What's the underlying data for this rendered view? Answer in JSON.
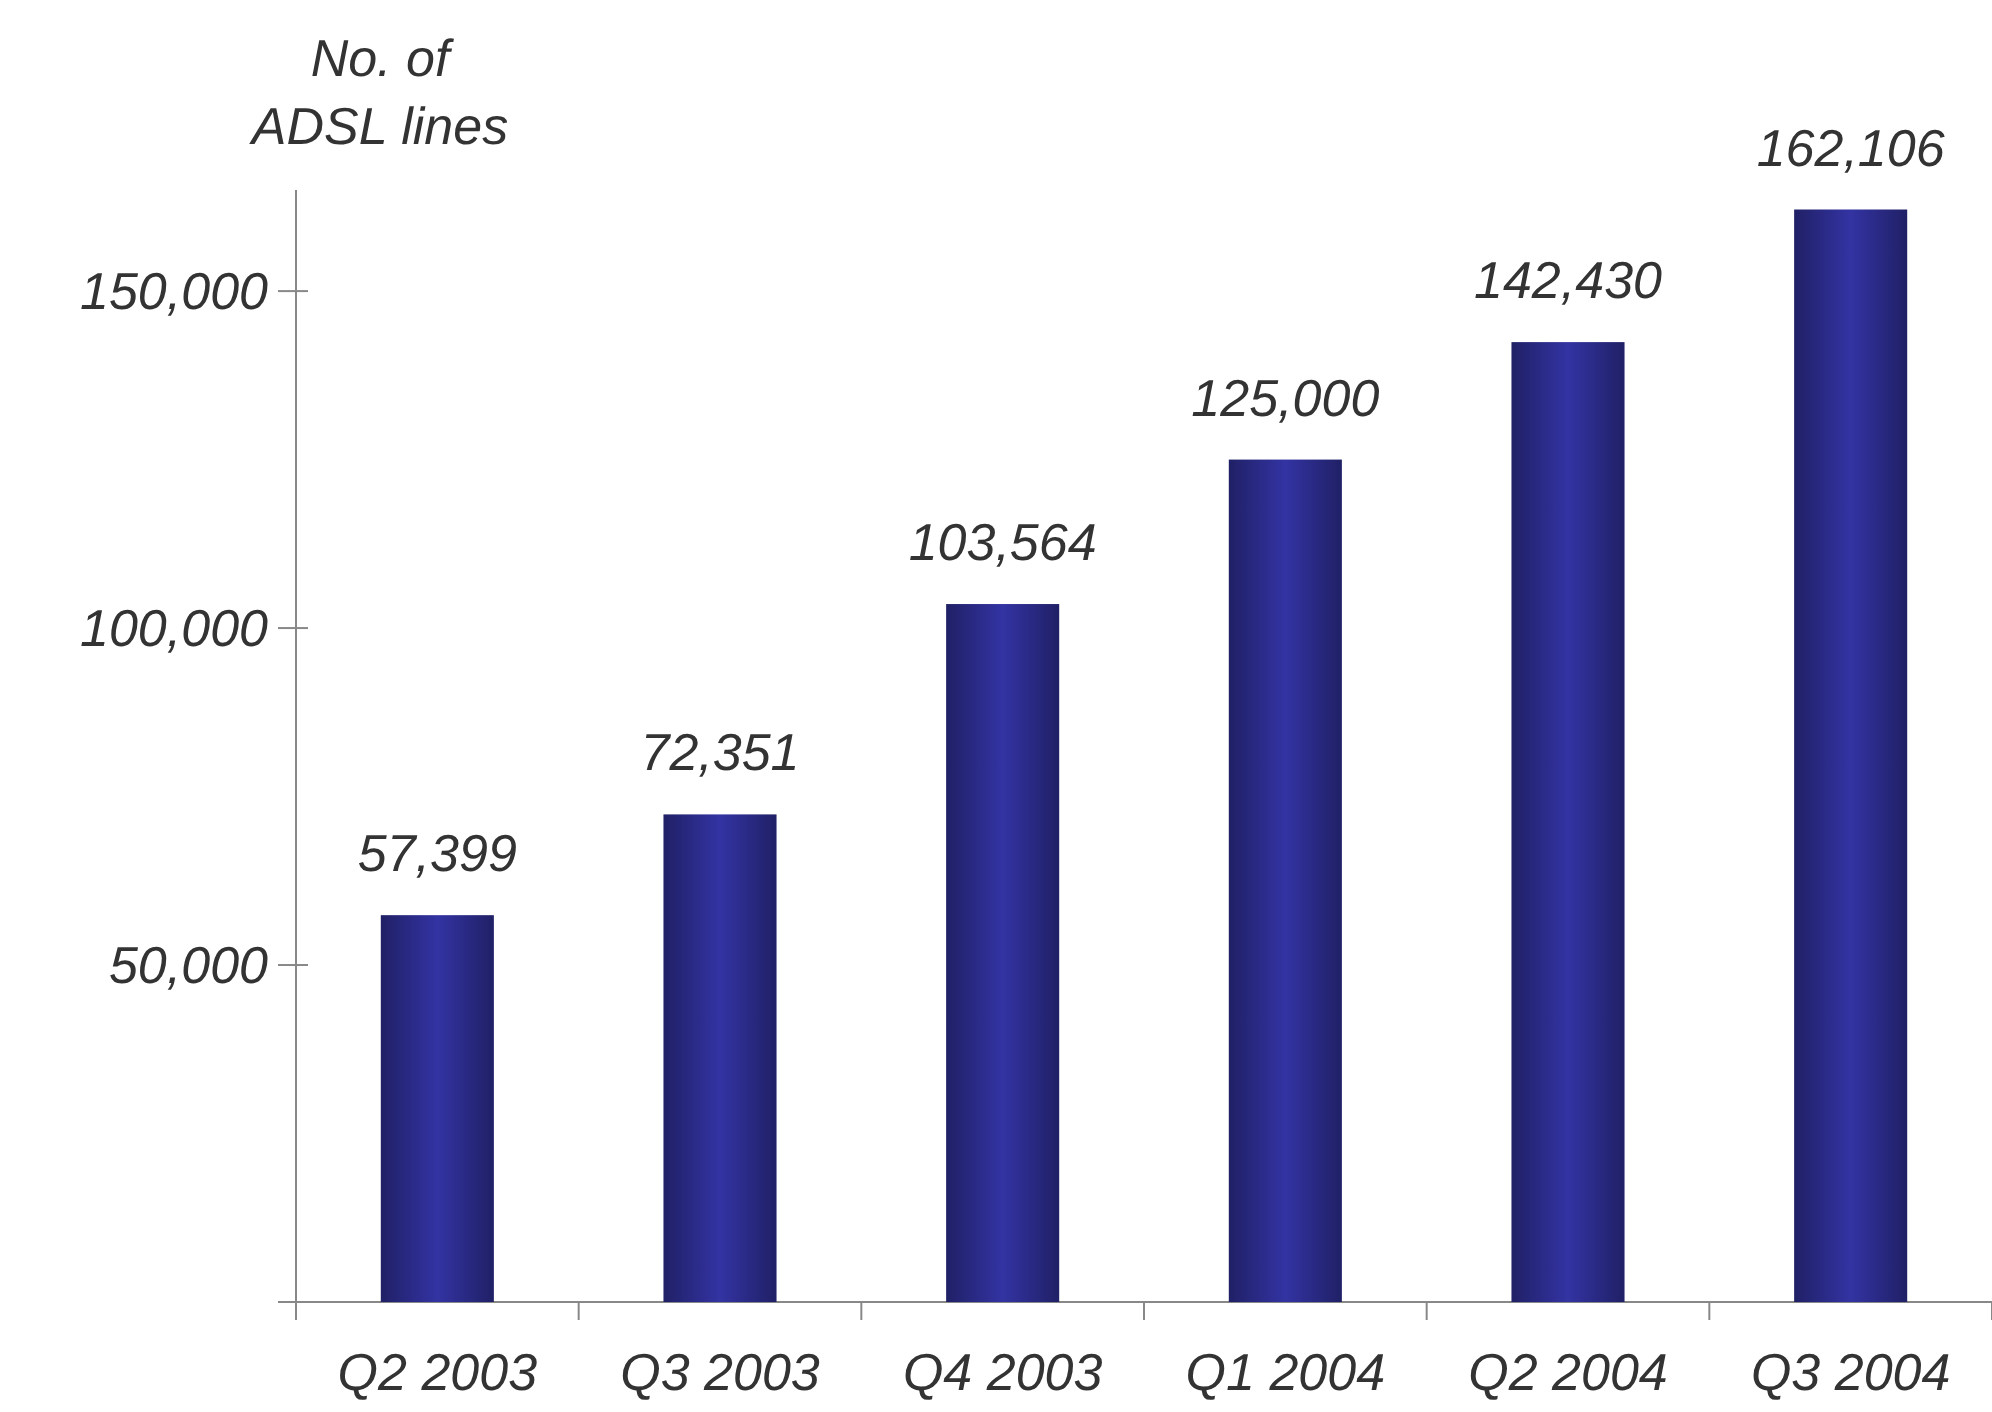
{
  "chart_data": {
    "type": "bar",
    "ylabel": "No. of ADSL lines",
    "categories": [
      "Q2 2003",
      "Q3 2003",
      "Q4 2003",
      "Q1 2004",
      "Q2 2004",
      "Q3 2004"
    ],
    "values": [
      57399,
      72351,
      103564,
      125000,
      142430,
      162106
    ],
    "color": "#2b2b88",
    "ylim": [
      0,
      165000
    ],
    "yticks": [
      {
        "value": 0,
        "label": null
      },
      {
        "value": 50000,
        "label": "50,000"
      },
      {
        "value": 100000,
        "label": "100,000"
      },
      {
        "value": 150000,
        "label": "150,000"
      }
    ],
    "value_labels": [
      "57,399",
      "72,351",
      "103,564",
      "125,000",
      "142,430",
      "162,106"
    ],
    "grid": false
  }
}
